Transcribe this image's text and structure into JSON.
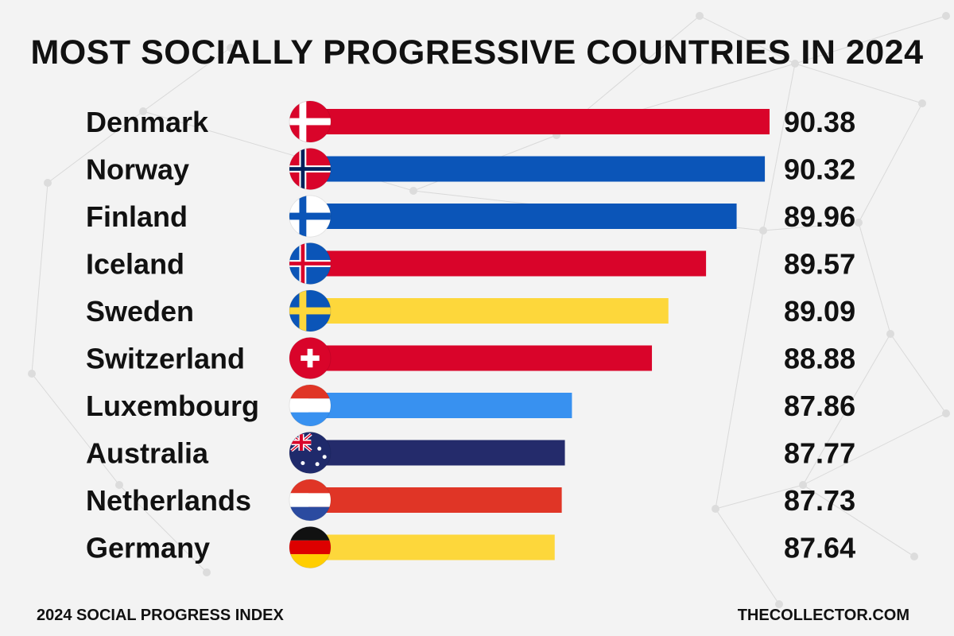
{
  "title": "MOST SOCIALLY PROGRESSIVE COUNTRIES IN 2024",
  "footer": {
    "source": "2024 SOCIAL PROGRESS INDEX",
    "credit": "THECOLLECTOR.COM"
  },
  "chart_data": {
    "type": "bar",
    "orientation": "horizontal",
    "title": "MOST SOCIALLY PROGRESSIVE COUNTRIES IN 2024",
    "categories": [
      "Denmark",
      "Norway",
      "Finland",
      "Iceland",
      "Sweden",
      "Switzerland",
      "Luxembourg",
      "Australia",
      "Netherlands",
      "Germany"
    ],
    "values": [
      90.38,
      90.32,
      89.96,
      89.57,
      89.09,
      88.88,
      87.86,
      87.77,
      87.73,
      87.64
    ],
    "value_labels": [
      "90.38",
      "90.32",
      "89.96",
      "89.57",
      "89.09",
      "88.88",
      "87.86",
      "87.77",
      "87.73",
      "87.64"
    ],
    "bar_colors": [
      "#d9042a",
      "#0b55b8",
      "#0b55b8",
      "#d9042a",
      "#fdd73b",
      "#d9042a",
      "#3891f0",
      "#242b6b",
      "#e03526",
      "#fdd73b"
    ],
    "flag_icons": [
      "denmark-flag-icon",
      "norway-flag-icon",
      "finland-flag-icon",
      "iceland-flag-icon",
      "sweden-flag-icon",
      "switzerland-flag-icon",
      "luxembourg-flag-icon",
      "australia-flag-icon",
      "netherlands-flag-icon",
      "germany-flag-icon"
    ],
    "xlim": [
      84.5,
      90.38
    ],
    "grid": false,
    "legend": "none"
  }
}
